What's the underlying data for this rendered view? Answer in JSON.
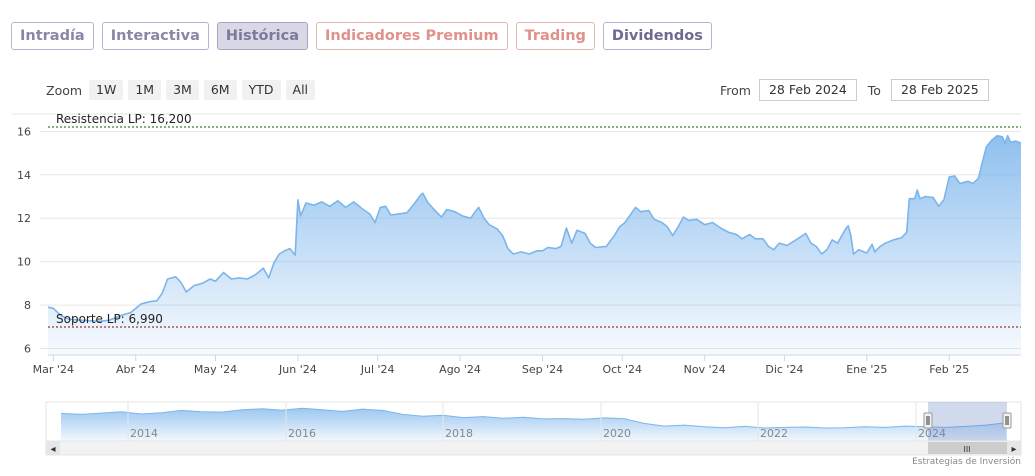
{
  "tabs": [
    {
      "label": "Intradía",
      "state": "normal"
    },
    {
      "label": "Interactiva",
      "state": "normal"
    },
    {
      "label": "Histórica",
      "state": "active"
    },
    {
      "label": "Indicadores Premium",
      "state": "premium"
    },
    {
      "label": "Trading",
      "state": "premium"
    },
    {
      "label": "Dividendos",
      "state": "dark"
    }
  ],
  "zoom": {
    "label": "Zoom",
    "buttons": [
      "1W",
      "1M",
      "3M",
      "6M",
      "YTD",
      "All"
    ]
  },
  "range": {
    "from_label": "From",
    "from_value": "28 Feb 2024",
    "to_label": "To",
    "to_value": "28 Feb 2025"
  },
  "chart_data": {
    "type": "area",
    "title": "",
    "xlabel": "",
    "ylabel": "",
    "ylim": [
      5.7,
      16.8
    ],
    "y_ticks": [
      "6",
      "8",
      "10",
      "12",
      "14",
      "16"
    ],
    "x_ticks": [
      "Mar '24",
      "Abr '24",
      "May '24",
      "Jun '24",
      "Jul '24",
      "Ago '24",
      "Sep '24",
      "Oct '24",
      "Nov '24",
      "Dic '24",
      "Ene '25",
      "Feb '25"
    ],
    "x_tick_dates": [
      "2024-03-01",
      "2024-04-01",
      "2024-05-01",
      "2024-06-01",
      "2024-07-01",
      "2024-08-01",
      "2024-09-01",
      "2024-10-01",
      "2024-11-01",
      "2024-12-01",
      "2025-01-01",
      "2025-02-01"
    ],
    "x_range": [
      "2024-02-28",
      "2025-02-28"
    ],
    "grid": true,
    "colors": {
      "line": "#7cb5ec",
      "fill_top": "#7cb5ec",
      "support": "#8b0000",
      "resistance": "#006400"
    },
    "reference_lines": [
      {
        "label": "Resistencia LP: 16,200",
        "value": 16.2,
        "color": "#006400"
      },
      {
        "label": "Soporte LP: 6,990",
        "value": 6.99,
        "color": "#8b0000"
      }
    ],
    "series": [
      {
        "points": [
          [
            "2024-02-28",
            7.9
          ],
          [
            "2024-03-01",
            7.85
          ],
          [
            "2024-03-04",
            7.5
          ],
          [
            "2024-03-07",
            7.35
          ],
          [
            "2024-03-12",
            7.3
          ],
          [
            "2024-03-18",
            7.25
          ],
          [
            "2024-03-22",
            7.3
          ],
          [
            "2024-03-26",
            7.5
          ],
          [
            "2024-03-30",
            7.65
          ],
          [
            "2024-04-03",
            8.05
          ],
          [
            "2024-04-06",
            8.15
          ],
          [
            "2024-04-09",
            8.2
          ],
          [
            "2024-04-11",
            8.55
          ],
          [
            "2024-04-13",
            9.2
          ],
          [
            "2024-04-16",
            9.3
          ],
          [
            "2024-04-18",
            9.05
          ],
          [
            "2024-04-20",
            8.6
          ],
          [
            "2024-04-23",
            8.9
          ],
          [
            "2024-04-26",
            9.0
          ],
          [
            "2024-04-29",
            9.2
          ],
          [
            "2024-05-01",
            9.1
          ],
          [
            "2024-05-04",
            9.5
          ],
          [
            "2024-05-07",
            9.2
          ],
          [
            "2024-05-10",
            9.25
          ],
          [
            "2024-05-13",
            9.2
          ],
          [
            "2024-05-16",
            9.4
          ],
          [
            "2024-05-19",
            9.7
          ],
          [
            "2024-05-21",
            9.25
          ],
          [
            "2024-05-23",
            9.95
          ],
          [
            "2024-05-25",
            10.35
          ],
          [
            "2024-05-27",
            10.5
          ],
          [
            "2024-05-29",
            10.6
          ],
          [
            "2024-05-31",
            10.3
          ],
          [
            "2024-06-01",
            12.85
          ],
          [
            "2024-06-02",
            12.1
          ],
          [
            "2024-06-04",
            12.7
          ],
          [
            "2024-06-07",
            12.6
          ],
          [
            "2024-06-10",
            12.75
          ],
          [
            "2024-06-13",
            12.55
          ],
          [
            "2024-06-16",
            12.8
          ],
          [
            "2024-06-19",
            12.5
          ],
          [
            "2024-06-22",
            12.75
          ],
          [
            "2024-06-25",
            12.45
          ],
          [
            "2024-06-28",
            12.2
          ],
          [
            "2024-06-30",
            11.8
          ],
          [
            "2024-07-02",
            12.5
          ],
          [
            "2024-07-04",
            12.55
          ],
          [
            "2024-07-06",
            12.15
          ],
          [
            "2024-07-09",
            12.2
          ],
          [
            "2024-07-12",
            12.25
          ],
          [
            "2024-07-15",
            12.7
          ],
          [
            "2024-07-17",
            13.05
          ],
          [
            "2024-07-18",
            13.15
          ],
          [
            "2024-07-20",
            12.7
          ],
          [
            "2024-07-23",
            12.3
          ],
          [
            "2024-07-25",
            12.05
          ],
          [
            "2024-07-27",
            12.4
          ],
          [
            "2024-07-30",
            12.3
          ],
          [
            "2024-08-02",
            12.1
          ],
          [
            "2024-08-05",
            12.0
          ],
          [
            "2024-08-07",
            12.35
          ],
          [
            "2024-08-08",
            12.5
          ],
          [
            "2024-08-10",
            12.0
          ],
          [
            "2024-08-12",
            11.7
          ],
          [
            "2024-08-15",
            11.5
          ],
          [
            "2024-08-17",
            11.2
          ],
          [
            "2024-08-19",
            10.6
          ],
          [
            "2024-08-21",
            10.35
          ],
          [
            "2024-08-24",
            10.45
          ],
          [
            "2024-08-27",
            10.35
          ],
          [
            "2024-08-30",
            10.5
          ],
          [
            "2024-09-01",
            10.5
          ],
          [
            "2024-09-03",
            10.65
          ],
          [
            "2024-09-06",
            10.6
          ],
          [
            "2024-09-08",
            10.7
          ],
          [
            "2024-09-10",
            11.55
          ],
          [
            "2024-09-12",
            10.85
          ],
          [
            "2024-09-14",
            11.45
          ],
          [
            "2024-09-17",
            11.3
          ],
          [
            "2024-09-19",
            10.85
          ],
          [
            "2024-09-21",
            10.65
          ],
          [
            "2024-09-25",
            10.7
          ],
          [
            "2024-09-28",
            11.2
          ],
          [
            "2024-09-30",
            11.6
          ],
          [
            "2024-10-02",
            11.8
          ],
          [
            "2024-10-06",
            12.5
          ],
          [
            "2024-10-08",
            12.3
          ],
          [
            "2024-10-11",
            12.35
          ],
          [
            "2024-10-13",
            11.95
          ],
          [
            "2024-10-16",
            11.8
          ],
          [
            "2024-10-18",
            11.6
          ],
          [
            "2024-10-20",
            11.2
          ],
          [
            "2024-10-22",
            11.6
          ],
          [
            "2024-10-24",
            12.05
          ],
          [
            "2024-10-26",
            11.9
          ],
          [
            "2024-10-29",
            11.95
          ],
          [
            "2024-11-01",
            11.7
          ],
          [
            "2024-11-04",
            11.8
          ],
          [
            "2024-11-07",
            11.55
          ],
          [
            "2024-11-10",
            11.35
          ],
          [
            "2024-11-13",
            11.25
          ],
          [
            "2024-11-15",
            11.05
          ],
          [
            "2024-11-18",
            11.25
          ],
          [
            "2024-11-20",
            11.05
          ],
          [
            "2024-11-23",
            11.05
          ],
          [
            "2024-11-25",
            10.7
          ],
          [
            "2024-11-27",
            10.55
          ],
          [
            "2024-11-29",
            10.85
          ],
          [
            "2024-12-02",
            10.75
          ],
          [
            "2024-12-04",
            10.9
          ],
          [
            "2024-12-06",
            11.05
          ],
          [
            "2024-12-09",
            11.3
          ],
          [
            "2024-12-11",
            10.85
          ],
          [
            "2024-12-13",
            10.7
          ],
          [
            "2024-12-15",
            10.35
          ],
          [
            "2024-12-17",
            10.55
          ],
          [
            "2024-12-19",
            11.0
          ],
          [
            "2024-12-21",
            10.85
          ],
          [
            "2024-12-24",
            11.5
          ],
          [
            "2024-12-25",
            11.65
          ],
          [
            "2024-12-26",
            11.2
          ],
          [
            "2024-12-27",
            10.35
          ],
          [
            "2024-12-29",
            10.55
          ],
          [
            "2025-01-01",
            10.4
          ],
          [
            "2025-01-03",
            10.8
          ],
          [
            "2025-01-04",
            10.45
          ],
          [
            "2025-01-06",
            10.7
          ],
          [
            "2025-01-08",
            10.85
          ],
          [
            "2025-01-11",
            11.0
          ],
          [
            "2025-01-14",
            11.1
          ],
          [
            "2025-01-16",
            11.35
          ],
          [
            "2025-01-17",
            12.9
          ],
          [
            "2025-01-19",
            12.9
          ],
          [
            "2025-01-20",
            13.3
          ],
          [
            "2025-01-21",
            12.9
          ],
          [
            "2025-01-23",
            13.0
          ],
          [
            "2025-01-26",
            12.95
          ],
          [
            "2025-01-28",
            12.55
          ],
          [
            "2025-01-30",
            12.85
          ],
          [
            "2025-02-01",
            13.9
          ],
          [
            "2025-02-03",
            13.95
          ],
          [
            "2025-02-05",
            13.6
          ],
          [
            "2025-02-08",
            13.7
          ],
          [
            "2025-02-10",
            13.6
          ],
          [
            "2025-02-12",
            13.85
          ],
          [
            "2025-02-13",
            14.35
          ],
          [
            "2025-02-15",
            15.3
          ],
          [
            "2025-02-17",
            15.6
          ],
          [
            "2025-02-19",
            15.8
          ],
          [
            "2025-02-21",
            15.75
          ],
          [
            "2025-02-22",
            15.45
          ],
          [
            "2025-02-23",
            15.8
          ],
          [
            "2025-02-24",
            15.5
          ],
          [
            "2025-02-26",
            15.55
          ],
          [
            "2025-02-28",
            15.45
          ]
        ]
      }
    ],
    "navigator": {
      "year_labels": [
        "2014",
        "2016",
        "2018",
        "2020",
        "2022",
        "2024"
      ],
      "values": [
        8.5,
        8.2,
        8.6,
        9.0,
        8.3,
        8.7,
        9.4,
        9.0,
        8.9,
        9.6,
        9.9,
        9.5,
        10.1,
        9.6,
        9.1,
        9.8,
        9.4,
        8.2,
        7.6,
        7.9,
        7.2,
        7.5,
        7.0,
        7.3,
        6.8,
        6.9,
        6.7,
        7.1,
        6.9,
        5.4,
        4.6,
        4.9,
        4.4,
        4.1,
        4.5,
        4.0,
        4.2,
        4.3,
        4.0,
        4.1,
        4.4,
        4.2,
        4.6,
        4.4,
        4.2,
        4.5,
        4.9,
        5.6
      ],
      "selected_range": [
        "2024-02-28",
        "2025-02-28"
      ]
    }
  },
  "scrollbar": {
    "left_arrow": "◂",
    "right_arrow": "▸",
    "grip": "III"
  },
  "credit": "Estrategias de Inversión"
}
